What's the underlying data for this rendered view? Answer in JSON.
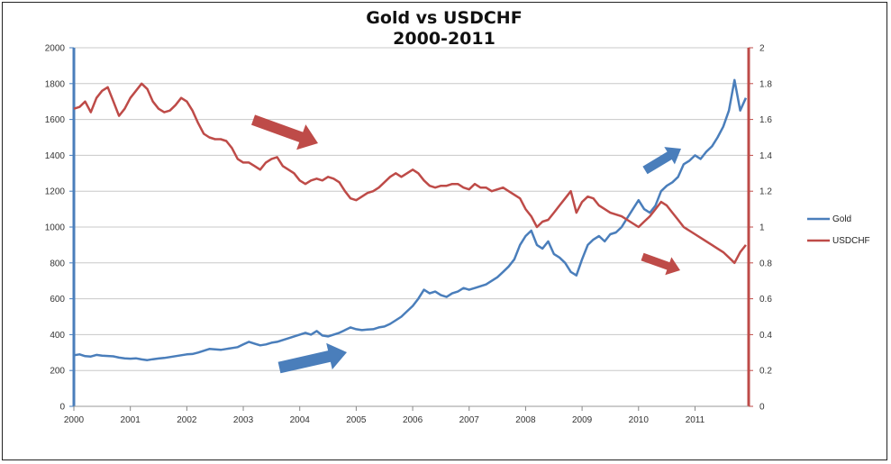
{
  "chart_data": {
    "type": "line",
    "title": "Gold vs USDCHF",
    "subtitle": "2000-2011",
    "xlabel": "",
    "ylabel": "",
    "x_ticks": [
      "2000",
      "2001",
      "2002",
      "2003",
      "2004",
      "2005",
      "2006",
      "2007",
      "2008",
      "2009",
      "2010",
      "2011"
    ],
    "xlim": [
      2000,
      2011.95
    ],
    "y_left": {
      "ylim": [
        0,
        2000
      ],
      "ticks": [
        "0",
        "200",
        "400",
        "600",
        "800",
        "1000",
        "1200",
        "1400",
        "1600",
        "1800",
        "2000"
      ]
    },
    "y_right": {
      "ylim": [
        0,
        2
      ],
      "ticks": [
        "0",
        "0.2",
        "0.4",
        "0.6",
        "0.8",
        "1",
        "1.2",
        "1.4",
        "1.6",
        "1.8",
        "2"
      ]
    },
    "grid": true,
    "legend_position": "right",
    "colors": {
      "gold": "#4a7ebb",
      "usdchf": "#be4b48",
      "grid": "#c8c8c8",
      "axis_left": "#4a7ebb",
      "axis_right": "#be4b48"
    },
    "series": [
      {
        "name": "Gold",
        "axis": "left",
        "color": "#4a7ebb",
        "x": [
          2000.0,
          2000.1,
          2000.2,
          2000.3,
          2000.4,
          2000.5,
          2000.6,
          2000.7,
          2000.8,
          2000.9,
          2001.0,
          2001.1,
          2001.2,
          2001.3,
          2001.4,
          2001.5,
          2001.6,
          2001.7,
          2001.8,
          2001.9,
          2002.0,
          2002.1,
          2002.2,
          2002.3,
          2002.4,
          2002.5,
          2002.6,
          2002.7,
          2002.8,
          2002.9,
          2003.0,
          2003.1,
          2003.2,
          2003.3,
          2003.4,
          2003.5,
          2003.6,
          2003.7,
          2003.8,
          2003.9,
          2004.0,
          2004.1,
          2004.2,
          2004.3,
          2004.4,
          2004.5,
          2004.6,
          2004.7,
          2004.8,
          2004.9,
          2005.0,
          2005.1,
          2005.2,
          2005.3,
          2005.4,
          2005.5,
          2005.6,
          2005.7,
          2005.8,
          2005.9,
          2006.0,
          2006.1,
          2006.2,
          2006.3,
          2006.4,
          2006.5,
          2006.6,
          2006.7,
          2006.8,
          2006.9,
          2007.0,
          2007.1,
          2007.2,
          2007.3,
          2007.4,
          2007.5,
          2007.6,
          2007.7,
          2007.8,
          2007.9,
          2008.0,
          2008.1,
          2008.2,
          2008.3,
          2008.4,
          2008.5,
          2008.6,
          2008.7,
          2008.8,
          2008.9,
          2009.0,
          2009.1,
          2009.2,
          2009.3,
          2009.4,
          2009.5,
          2009.6,
          2009.7,
          2009.8,
          2009.9,
          2010.0,
          2010.1,
          2010.2,
          2010.3,
          2010.4,
          2010.5,
          2010.6,
          2010.7,
          2010.8,
          2010.9,
          2011.0,
          2011.1,
          2011.2,
          2011.3,
          2011.4,
          2011.5,
          2011.6,
          2011.7,
          2011.8,
          2011.9
        ],
        "values": [
          285,
          290,
          280,
          278,
          287,
          283,
          281,
          279,
          272,
          268,
          266,
          268,
          262,
          258,
          263,
          267,
          270,
          275,
          280,
          285,
          290,
          292,
          300,
          310,
          320,
          318,
          315,
          320,
          325,
          330,
          345,
          360,
          350,
          340,
          345,
          355,
          360,
          370,
          380,
          390,
          400,
          410,
          400,
          420,
          395,
          390,
          400,
          410,
          425,
          440,
          430,
          425,
          428,
          430,
          440,
          445,
          460,
          480,
          500,
          530,
          560,
          600,
          650,
          630,
          640,
          620,
          610,
          630,
          640,
          660,
          650,
          660,
          670,
          680,
          700,
          720,
          750,
          780,
          820,
          900,
          950,
          980,
          900,
          880,
          920,
          850,
          830,
          800,
          750,
          730,
          820,
          900,
          930,
          950,
          920,
          960,
          970,
          1000,
          1050,
          1100,
          1150,
          1100,
          1080,
          1120,
          1200,
          1230,
          1250,
          1280,
          1350,
          1370,
          1400,
          1380,
          1420,
          1450,
          1500,
          1560,
          1650,
          1820,
          1650,
          1720
        ]
      },
      {
        "name": "USDCHF",
        "axis": "right",
        "color": "#be4b48",
        "x": [
          2000.0,
          2000.1,
          2000.2,
          2000.3,
          2000.4,
          2000.5,
          2000.6,
          2000.7,
          2000.8,
          2000.9,
          2001.0,
          2001.1,
          2001.2,
          2001.3,
          2001.4,
          2001.5,
          2001.6,
          2001.7,
          2001.8,
          2001.9,
          2002.0,
          2002.1,
          2002.2,
          2002.3,
          2002.4,
          2002.5,
          2002.6,
          2002.7,
          2002.8,
          2002.9,
          2003.0,
          2003.1,
          2003.2,
          2003.3,
          2003.4,
          2003.5,
          2003.6,
          2003.7,
          2003.8,
          2003.9,
          2004.0,
          2004.1,
          2004.2,
          2004.3,
          2004.4,
          2004.5,
          2004.6,
          2004.7,
          2004.8,
          2004.9,
          2005.0,
          2005.1,
          2005.2,
          2005.3,
          2005.4,
          2005.5,
          2005.6,
          2005.7,
          2005.8,
          2005.9,
          2006.0,
          2006.1,
          2006.2,
          2006.3,
          2006.4,
          2006.5,
          2006.6,
          2006.7,
          2006.8,
          2006.9,
          2007.0,
          2007.1,
          2007.2,
          2007.3,
          2007.4,
          2007.5,
          2007.6,
          2007.7,
          2007.8,
          2007.9,
          2008.0,
          2008.1,
          2008.2,
          2008.3,
          2008.4,
          2008.5,
          2008.6,
          2008.7,
          2008.8,
          2008.9,
          2009.0,
          2009.1,
          2009.2,
          2009.3,
          2009.4,
          2009.5,
          2009.6,
          2009.7,
          2009.8,
          2009.9,
          2010.0,
          2010.1,
          2010.2,
          2010.3,
          2010.4,
          2010.5,
          2010.6,
          2010.7,
          2010.8,
          2010.9,
          2011.0,
          2011.1,
          2011.2,
          2011.3,
          2011.4,
          2011.5,
          2011.6,
          2011.7,
          2011.8,
          2011.9
        ],
        "values": [
          1.66,
          1.67,
          1.7,
          1.64,
          1.72,
          1.76,
          1.78,
          1.7,
          1.62,
          1.66,
          1.72,
          1.76,
          1.8,
          1.77,
          1.7,
          1.66,
          1.64,
          1.65,
          1.68,
          1.72,
          1.7,
          1.65,
          1.58,
          1.52,
          1.5,
          1.49,
          1.49,
          1.48,
          1.44,
          1.38,
          1.36,
          1.36,
          1.34,
          1.32,
          1.36,
          1.38,
          1.39,
          1.34,
          1.32,
          1.3,
          1.26,
          1.24,
          1.26,
          1.27,
          1.26,
          1.28,
          1.27,
          1.25,
          1.2,
          1.16,
          1.15,
          1.17,
          1.19,
          1.2,
          1.22,
          1.25,
          1.28,
          1.3,
          1.28,
          1.3,
          1.32,
          1.3,
          1.26,
          1.23,
          1.22,
          1.23,
          1.23,
          1.24,
          1.24,
          1.22,
          1.21,
          1.24,
          1.22,
          1.22,
          1.2,
          1.21,
          1.22,
          1.2,
          1.18,
          1.16,
          1.1,
          1.06,
          1.0,
          1.03,
          1.04,
          1.08,
          1.12,
          1.16,
          1.2,
          1.08,
          1.14,
          1.17,
          1.16,
          1.12,
          1.1,
          1.08,
          1.07,
          1.06,
          1.04,
          1.02,
          1.0,
          1.03,
          1.06,
          1.1,
          1.14,
          1.12,
          1.08,
          1.04,
          1.0,
          0.98,
          0.96,
          0.94,
          0.92,
          0.9,
          0.88,
          0.86,
          0.83,
          0.8,
          0.86,
          0.9
        ]
      }
    ]
  }
}
